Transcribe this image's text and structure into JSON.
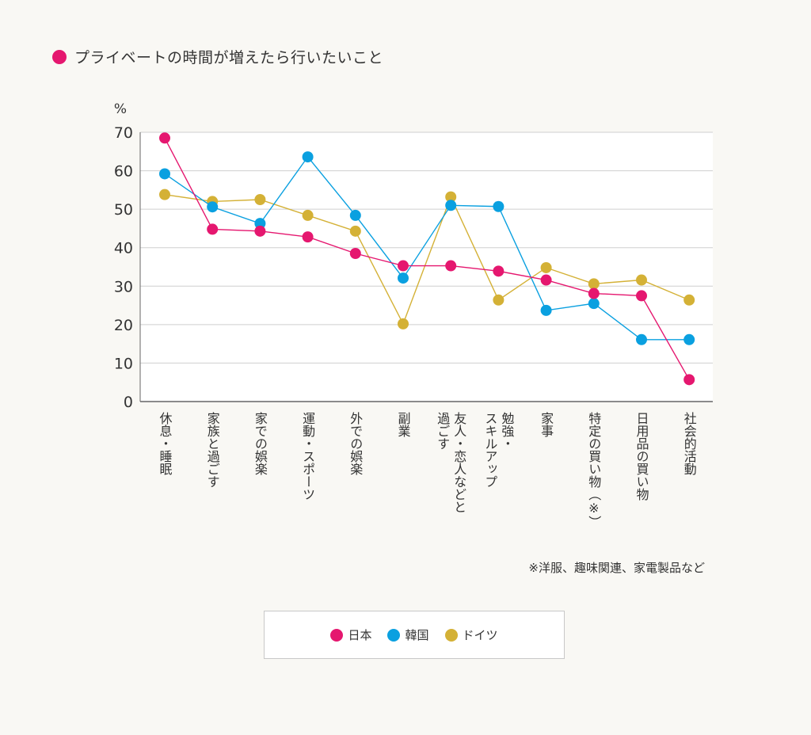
{
  "header": {
    "title": "プライベートの時間が増えたら行いたいこと",
    "title_dot_color": "#e5176f"
  },
  "chart_data": {
    "type": "line",
    "y_unit_label": "%",
    "ylim": [
      0,
      70
    ],
    "yticks": [
      0,
      10,
      20,
      30,
      40,
      50,
      60,
      70
    ],
    "grid": true,
    "legend_position": "bottom-center",
    "categories": [
      "休息・睡眠",
      "家族と過ごす",
      "家での娯楽",
      "運動・スポーツ",
      "外での娯楽",
      "副業",
      "友人・恋人などと過ごす",
      "勉強・スキルアップ",
      "家事",
      "特定の買い物（※）",
      "日用品の買い物",
      "社会的活動"
    ],
    "category_label_columns": [
      [
        "休息・睡眠"
      ],
      [
        "家族と過ごす"
      ],
      [
        "家での娯楽"
      ],
      [
        "運動・スポーツ"
      ],
      [
        "外での娯楽"
      ],
      [
        "副業"
      ],
      [
        "過ごす",
        "友人・恋人などと"
      ],
      [
        "スキルアップ",
        "勉強・"
      ],
      [
        "家事"
      ],
      [
        "特定の買い物（※）"
      ],
      [
        "日用品の買い物"
      ],
      [
        "社会的活動"
      ]
    ],
    "series": [
      {
        "name": "ドイツ",
        "color": "#d4b136",
        "values": [
          53.8,
          52.0,
          52.5,
          48.4,
          44.3,
          20.2,
          53.2,
          26.4,
          34.8,
          30.6,
          31.6,
          26.4
        ]
      },
      {
        "name": "韓国",
        "color": "#0aa0e0",
        "values": [
          59.2,
          50.6,
          46.3,
          63.6,
          48.4,
          32.1,
          51.0,
          50.7,
          23.7,
          25.5,
          16.1,
          16.1
        ]
      },
      {
        "name": "日本",
        "color": "#e5176f",
        "values": [
          68.5,
          44.8,
          44.3,
          42.8,
          38.5,
          35.3,
          35.3,
          33.9,
          31.6,
          28.1,
          27.5,
          5.7
        ]
      }
    ],
    "annotation": "※洋服、趣味関連、家電製品など"
  },
  "legend": {
    "items": [
      {
        "label": "日本",
        "color": "#e5176f"
      },
      {
        "label": "韓国",
        "color": "#0aa0e0"
      },
      {
        "label": "ドイツ",
        "color": "#d4b136"
      }
    ]
  }
}
